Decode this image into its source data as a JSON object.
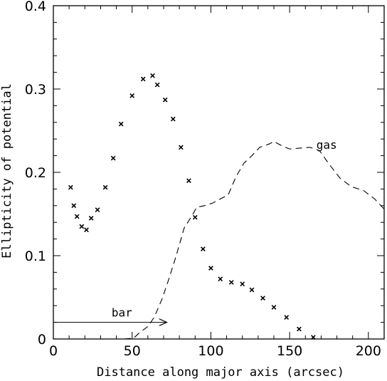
{
  "chart_data": {
    "type": "scatter",
    "title": "",
    "xlabel": "Distance along major axis (arcsec)",
    "ylabel": "Ellipticity of potential",
    "xlim": [
      0,
      210
    ],
    "ylim": [
      0,
      0.4
    ],
    "x_ticks": [
      {
        "value": 0,
        "label": "0"
      },
      {
        "value": 50,
        "label": "50"
      },
      {
        "value": 100,
        "label": "100"
      },
      {
        "value": 150,
        "label": "150"
      },
      {
        "value": 200,
        "label": "200"
      }
    ],
    "y_ticks": [
      {
        "value": 0,
        "label": "0"
      },
      {
        "value": 0.1,
        "label": "0.1"
      },
      {
        "value": 0.2,
        "label": "0.2"
      },
      {
        "value": 0.3,
        "label": "0.3"
      },
      {
        "value": 0.4,
        "label": "0.4"
      }
    ],
    "x_minor_step": 10,
    "y_minor_step": 0.02,
    "grid": false,
    "series": [
      {
        "style": "cross-markers",
        "color": "#000000",
        "points": [
          [
            11,
            0.182
          ],
          [
            13,
            0.16
          ],
          [
            15,
            0.147
          ],
          [
            18,
            0.135
          ],
          [
            21,
            0.131
          ],
          [
            24,
            0.145
          ],
          [
            28,
            0.155
          ],
          [
            33,
            0.182
          ],
          [
            38,
            0.217
          ],
          [
            43,
            0.258
          ],
          [
            50,
            0.292
          ],
          [
            57,
            0.312
          ],
          [
            63,
            0.316
          ],
          [
            66,
            0.305
          ],
          [
            71,
            0.287
          ],
          [
            76,
            0.264
          ],
          [
            81,
            0.23
          ],
          [
            86,
            0.19
          ],
          [
            90,
            0.146
          ],
          [
            95,
            0.108
          ],
          [
            100,
            0.085
          ],
          [
            106,
            0.072
          ],
          [
            113,
            0.068
          ],
          [
            120,
            0.066
          ],
          [
            126,
            0.059
          ],
          [
            133,
            0.049
          ],
          [
            140,
            0.038
          ],
          [
            148,
            0.026
          ],
          [
            156,
            0.012
          ],
          [
            165,
            0.002
          ]
        ]
      },
      {
        "name": "gas",
        "style": "dashed-line",
        "color": "#000000",
        "points": [
          [
            45,
            0.0
          ],
          [
            51,
            0.001
          ],
          [
            55,
            0.008
          ],
          [
            60,
            0.015
          ],
          [
            64,
            0.026
          ],
          [
            69,
            0.048
          ],
          [
            73,
            0.07
          ],
          [
            78,
            0.1
          ],
          [
            83,
            0.133
          ],
          [
            88,
            0.148
          ],
          [
            91,
            0.158
          ],
          [
            96,
            0.16
          ],
          [
            101,
            0.163
          ],
          [
            106,
            0.168
          ],
          [
            111,
            0.173
          ],
          [
            116,
            0.195
          ],
          [
            121,
            0.211
          ],
          [
            126,
            0.22
          ],
          [
            131,
            0.23
          ],
          [
            137,
            0.234
          ],
          [
            140,
            0.237
          ],
          [
            145,
            0.232
          ],
          [
            150,
            0.228
          ],
          [
            156,
            0.229
          ],
          [
            163,
            0.23
          ],
          [
            169,
            0.226
          ],
          [
            175,
            0.21
          ],
          [
            182,
            0.193
          ],
          [
            189,
            0.183
          ],
          [
            197,
            0.178
          ],
          [
            204,
            0.168
          ],
          [
            210,
            0.156
          ]
        ]
      }
    ],
    "annotations": [
      {
        "text": "gas",
        "x": 167,
        "y": 0.228
      },
      {
        "text": "bar",
        "x": 37,
        "y": 0.027,
        "arrow": {
          "from_x": 0,
          "to_x": 72,
          "y": 0.02
        }
      }
    ]
  }
}
